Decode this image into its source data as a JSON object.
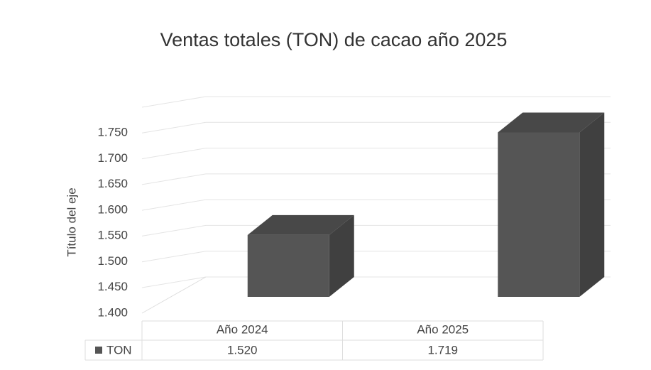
{
  "chart_data": {
    "type": "bar3d",
    "title": "Ventas totales (TON) de cacao año 2025",
    "y_label": "Título del eje",
    "categories": [
      "Año 2024",
      "Año 2025"
    ],
    "series": [
      {
        "name": "TON",
        "color": "#555555",
        "values": [
          1520,
          1719
        ],
        "value_labels": [
          "1.520",
          "1.719"
        ]
      }
    ],
    "ylim": [
      1400,
      1750
    ],
    "yticks": [
      {
        "value": 1400,
        "label": "1.400"
      },
      {
        "value": 1450,
        "label": "1.450"
      },
      {
        "value": 1500,
        "label": "1.500"
      },
      {
        "value": 1550,
        "label": "1.550"
      },
      {
        "value": 1600,
        "label": "1.600"
      },
      {
        "value": 1650,
        "label": "1.650"
      },
      {
        "value": 1700,
        "label": "1.700"
      },
      {
        "value": 1750,
        "label": "1.750"
      }
    ],
    "grid": true,
    "data_table": true
  }
}
